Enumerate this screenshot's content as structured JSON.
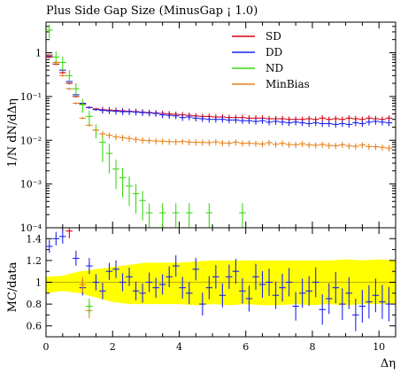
{
  "chart_data": {
    "type": "scatter",
    "title": "Plus Side Gap Size (MinusGap ¡ 1.0)",
    "xlabel": "Δη",
    "ylabel": "1/N dN/dΔη",
    "ratio_ylabel": "MC/data",
    "xlim": [
      0,
      10.5
    ],
    "ylim": [
      0.0001,
      5
    ],
    "yscale": "log",
    "ratio_ylim": [
      0.5,
      1.5
    ],
    "x_ticks": [
      "0",
      "2",
      "4",
      "6",
      "8",
      "10"
    ],
    "y_ticks": [
      "10⁻⁴",
      "10⁻³",
      "10⁻²",
      "10⁻¹",
      "1"
    ],
    "ratio_ticks": [
      "0.6",
      "0.8",
      "1",
      "1.2",
      "1.4"
    ],
    "legend_position": "top-right",
    "series": [
      {
        "name": "SD",
        "color": "#d9000f",
        "x": [
          0.1,
          0.3,
          0.5,
          0.7,
          0.9,
          1.1,
          1.3,
          1.5,
          1.7,
          1.9,
          2.1,
          2.3,
          2.5,
          2.7,
          2.9,
          3.1,
          3.3,
          3.5,
          3.7,
          3.9,
          4.1,
          4.3,
          4.5,
          4.7,
          4.9,
          5.1,
          5.3,
          5.5,
          5.7,
          5.9,
          6.1,
          6.3,
          6.5,
          6.7,
          6.9,
          7.1,
          7.3,
          7.5,
          7.7,
          7.9,
          8.1,
          8.3,
          8.5,
          8.7,
          8.9,
          9.1,
          9.3,
          9.5,
          9.7,
          9.9,
          10.1,
          10.3
        ],
        "y": [
          0.8,
          0.55,
          0.35,
          0.2,
          0.1,
          0.068,
          0.056,
          0.052,
          0.05,
          0.049,
          0.048,
          0.047,
          0.046,
          0.045,
          0.044,
          0.043,
          0.042,
          0.041,
          0.04,
          0.039,
          0.038,
          0.037,
          0.036,
          0.035,
          0.035,
          0.034,
          0.034,
          0.033,
          0.033,
          0.033,
          0.032,
          0.032,
          0.032,
          0.031,
          0.031,
          0.031,
          0.03,
          0.03,
          0.03,
          0.031,
          0.03,
          0.032,
          0.03,
          0.031,
          0.03,
          0.032,
          0.031,
          0.03,
          0.032,
          0.031,
          0.03,
          0.032
        ]
      },
      {
        "name": "DD",
        "color": "#1c25ee",
        "x": [
          0.1,
          0.3,
          0.5,
          0.7,
          0.9,
          1.1,
          1.3,
          1.5,
          1.7,
          1.9,
          2.1,
          2.3,
          2.5,
          2.7,
          2.9,
          3.1,
          3.3,
          3.5,
          3.7,
          3.9,
          4.1,
          4.3,
          4.5,
          4.7,
          4.9,
          5.1,
          5.3,
          5.5,
          5.7,
          5.9,
          6.1,
          6.3,
          6.5,
          6.7,
          6.9,
          7.1,
          7.3,
          7.5,
          7.7,
          7.9,
          8.1,
          8.3,
          8.5,
          8.7,
          8.9,
          9.1,
          9.3,
          9.5,
          9.7,
          9.9,
          10.1,
          10.3
        ],
        "y": [
          0.85,
          0.6,
          0.4,
          0.22,
          0.11,
          0.07,
          0.056,
          0.05,
          0.048,
          0.047,
          0.046,
          0.045,
          0.045,
          0.044,
          0.043,
          0.042,
          0.041,
          0.038,
          0.037,
          0.036,
          0.033,
          0.034,
          0.032,
          0.031,
          0.03,
          0.03,
          0.03,
          0.029,
          0.029,
          0.028,
          0.028,
          0.027,
          0.028,
          0.026,
          0.027,
          0.026,
          0.025,
          0.026,
          0.025,
          0.024,
          0.025,
          0.024,
          0.024,
          0.023,
          0.024,
          0.023,
          0.025,
          0.024,
          0.026,
          0.027,
          0.026,
          0.025
        ]
      },
      {
        "name": "ND",
        "color": "#3bda14",
        "x": [
          0.1,
          0.3,
          0.5,
          0.7,
          0.9,
          1.1,
          1.3,
          1.5,
          1.7,
          1.9,
          2.1,
          2.3,
          2.5,
          2.7,
          2.9,
          3.1,
          3.5,
          3.9,
          4.3,
          4.9,
          5.9
        ],
        "y": [
          3.3,
          0.8,
          0.6,
          0.3,
          0.15,
          0.065,
          0.035,
          0.017,
          0.009,
          0.005,
          0.0022,
          0.0014,
          0.0009,
          0.0006,
          0.00042,
          0.00022,
          0.00022,
          0.00022,
          0.00022,
          0.00022,
          0.00022
        ]
      },
      {
        "name": "MinBias",
        "color": "#e8821a",
        "x": [
          0.1,
          0.3,
          0.5,
          0.7,
          0.9,
          1.1,
          1.3,
          1.5,
          1.7,
          1.9,
          2.1,
          2.3,
          2.5,
          2.7,
          2.9,
          3.1,
          3.3,
          3.5,
          3.7,
          3.9,
          4.1,
          4.3,
          4.5,
          4.7,
          4.9,
          5.1,
          5.3,
          5.5,
          5.7,
          5.9,
          6.1,
          6.3,
          6.5,
          6.7,
          6.9,
          7.1,
          7.3,
          7.5,
          7.7,
          7.9,
          8.1,
          8.3,
          8.5,
          8.7,
          8.9,
          9.1,
          9.3,
          9.5,
          9.7,
          9.9,
          10.1,
          10.3
        ],
        "y": [
          0.9,
          0.6,
          0.3,
          0.15,
          0.07,
          0.032,
          0.022,
          0.017,
          0.014,
          0.013,
          0.012,
          0.0115,
          0.011,
          0.0105,
          0.01,
          0.0098,
          0.0096,
          0.0095,
          0.0093,
          0.0092,
          0.0094,
          0.0091,
          0.009,
          0.0089,
          0.0088,
          0.0092,
          0.0087,
          0.0086,
          0.009,
          0.0085,
          0.0086,
          0.0084,
          0.0082,
          0.0088,
          0.0081,
          0.0085,
          0.008,
          0.0079,
          0.0083,
          0.0078,
          0.0077,
          0.008,
          0.0076,
          0.0075,
          0.0079,
          0.0074,
          0.0073,
          0.0078,
          0.0072,
          0.0071,
          0.0069,
          0.0066
        ]
      }
    ],
    "ratio_band": {
      "x": [
        0,
        0.5,
        1.0,
        1.5,
        2.0,
        2.5,
        3.0,
        3.5,
        4.0,
        4.5,
        5.0,
        5.5,
        6.0,
        6.5,
        7.0,
        7.5,
        8.0,
        8.5,
        9.0,
        9.5,
        10.0,
        10.5
      ],
      "low": [
        0.9,
        0.92,
        0.9,
        0.86,
        0.82,
        0.8,
        0.8,
        0.8,
        0.8,
        0.79,
        0.8,
        0.79,
        0.8,
        0.79,
        0.79,
        0.8,
        0.79,
        0.8,
        0.79,
        0.8,
        0.8,
        0.8
      ],
      "high": [
        1.05,
        1.06,
        1.1,
        1.12,
        1.14,
        1.16,
        1.18,
        1.18,
        1.18,
        1.19,
        1.2,
        1.2,
        1.2,
        1.2,
        1.2,
        1.2,
        1.2,
        1.2,
        1.21,
        1.2,
        1.21,
        1.2
      ]
    },
    "ratio_series": [
      {
        "name": "DD",
        "color": "#1c25ee",
        "x": [
          0.1,
          0.3,
          0.5,
          0.9,
          1.1,
          1.3,
          1.5,
          1.7,
          1.9,
          2.1,
          2.3,
          2.5,
          2.7,
          2.9,
          3.1,
          3.3,
          3.5,
          3.7,
          3.9,
          4.1,
          4.3,
          4.5,
          4.7,
          4.9,
          5.1,
          5.3,
          5.5,
          5.7,
          5.9,
          6.1,
          6.3,
          6.5,
          6.7,
          6.9,
          7.1,
          7.3,
          7.5,
          7.7,
          7.9,
          8.1,
          8.3,
          8.5,
          8.7,
          8.9,
          9.1,
          9.3,
          9.5,
          9.7,
          9.9,
          10.1,
          10.3
        ],
        "y": [
          1.33,
          1.4,
          1.42,
          1.22,
          0.95,
          1.15,
          1.0,
          0.92,
          1.1,
          1.12,
          1.0,
          1.05,
          0.92,
          0.9,
          1.0,
          0.95,
          0.98,
          1.05,
          1.15,
          0.95,
          0.9,
          1.12,
          0.8,
          0.95,
          1.05,
          0.88,
          1.05,
          1.1,
          0.92,
          0.85,
          1.05,
          0.98,
          1.0,
          0.88,
          0.95,
          1.0,
          0.78,
          0.9,
          0.92,
          1.0,
          0.75,
          0.85,
          0.95,
          0.8,
          0.9,
          0.7,
          0.78,
          0.82,
          0.88,
          0.82,
          0.8
        ]
      },
      {
        "name": "MinBias",
        "color": "#e8821a",
        "x": [
          1.1,
          1.3
        ],
        "y": [
          0.98,
          0.74
        ]
      },
      {
        "name": "SD",
        "color": "#d9000f",
        "x": [
          0.7
        ],
        "y": [
          1.47
        ]
      },
      {
        "name": "ND",
        "color": "#3bda14",
        "x": [
          1.3
        ],
        "y": [
          0.78
        ]
      }
    ]
  },
  "legend": [
    {
      "label": "SD",
      "color": "#d9000f"
    },
    {
      "label": "DD",
      "color": "#1c25ee"
    },
    {
      "label": "ND",
      "color": "#3bda14"
    },
    {
      "label": "MinBias",
      "color": "#e8821a"
    }
  ]
}
